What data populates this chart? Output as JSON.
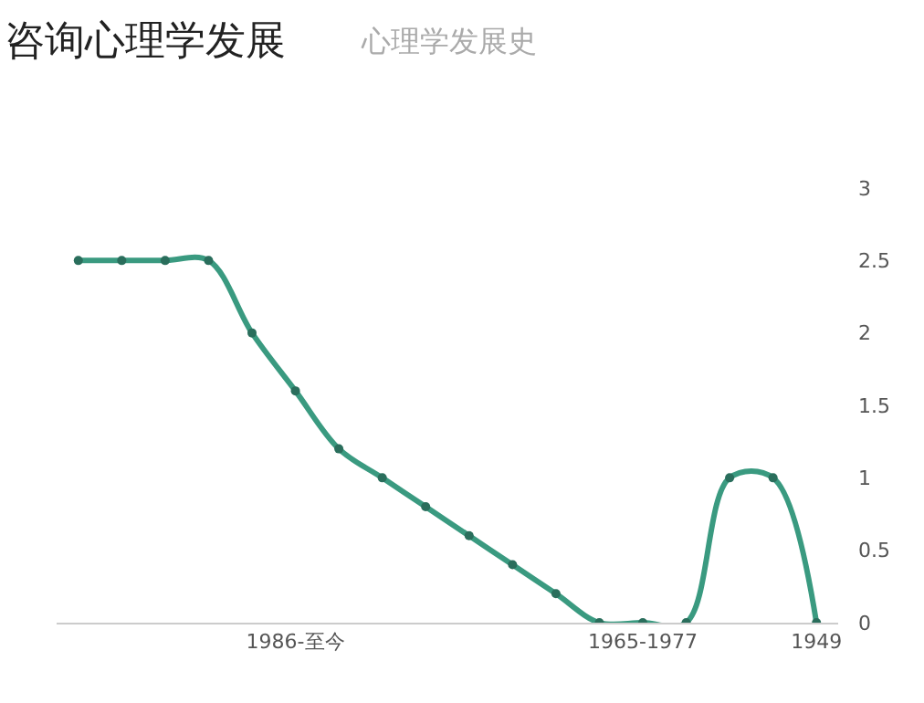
{
  "chart_data": {
    "type": "line",
    "title": "咨询心理学发展",
    "subtitle": "心理学发展史",
    "categories": [
      null,
      null,
      null,
      null,
      null,
      "1986-至今",
      null,
      null,
      null,
      null,
      null,
      null,
      null,
      "1965-1977",
      null,
      null,
      null,
      "1949"
    ],
    "series": [
      {
        "color": "#3a9a80",
        "values": [
          2.5,
          2.5,
          2.5,
          2.5,
          2.0,
          1.6,
          1.2,
          1.0,
          0.8,
          0.6,
          0.4,
          0.2,
          0,
          0,
          0,
          1,
          1,
          0
        ]
      }
    ],
    "ylim": [
      0,
      3
    ],
    "yticks": [
      0,
      0.5,
      1,
      1.5,
      2,
      2.5,
      3
    ],
    "marker": "circle",
    "line_style": "solid"
  }
}
